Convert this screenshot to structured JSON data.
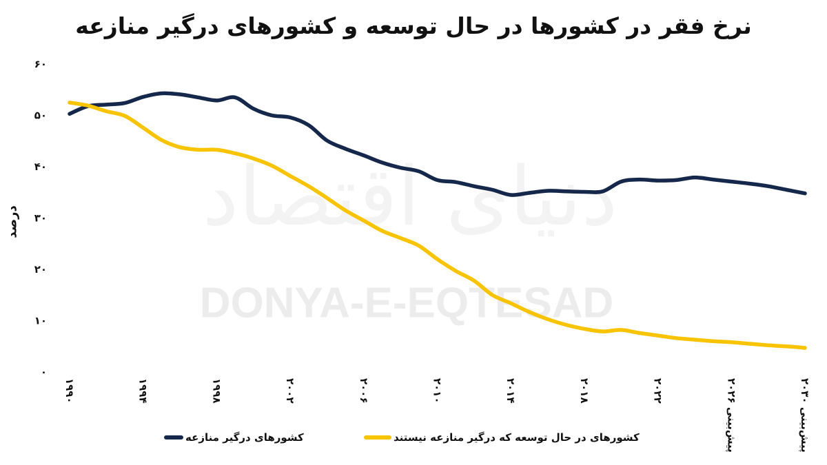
{
  "watermark": {
    "latin": "DONYA-E-EQTESAD",
    "persian": "دنیای اقتصاد"
  },
  "chart_data": {
    "type": "line",
    "title": "نرخ فقر در کشورها در حال توسعه و کشورهای درگیر منازعه",
    "xlabel": "",
    "ylabel": "درصد",
    "xlim": [
      1990,
      2030
    ],
    "ylim": [
      0,
      60
    ],
    "grid": false,
    "legend_position": "bottom",
    "yticks": [
      0,
      10,
      20,
      30,
      40,
      50,
      60
    ],
    "ytick_labels": [
      "۰",
      "۱۰",
      "۲۰",
      "۳۰",
      "۴۰",
      "۵۰",
      "۶۰"
    ],
    "xticks": [
      1990,
      1994,
      1998,
      2002,
      2006,
      2010,
      2014,
      2018,
      2022,
      2026,
      2030
    ],
    "xtick_labels": [
      "۱۹۹۰",
      "۱۹۹۴",
      "۱۹۹۸",
      "۲۰۰۲",
      "۲۰۰۶",
      "۲۰۱۰",
      "۲۰۱۴",
      "۲۰۱۸",
      "۲۰۲۲",
      "۲۰۲۶ پیش‌بینی",
      "۲۰۳۰ پیش‌بینی"
    ],
    "x": [
      1990,
      1991,
      1992,
      1993,
      1994,
      1995,
      1996,
      1997,
      1998,
      1999,
      2000,
      2001,
      2002,
      2003,
      2004,
      2005,
      2006,
      2007,
      2008,
      2009,
      2010,
      2011,
      2012,
      2013,
      2014,
      2015,
      2016,
      2017,
      2018,
      2019,
      2020,
      2021,
      2022,
      2023,
      2024,
      2025,
      2026,
      2027,
      2028,
      2029,
      2030
    ],
    "series": [
      {
        "name": "کشورهای درگیر منازعه",
        "color": "#15284b",
        "values": [
          50.3,
          51.8,
          52.1,
          52.4,
          53.6,
          54.3,
          54.1,
          53.5,
          52.9,
          53.5,
          51.3,
          50.0,
          49.6,
          48.1,
          45.1,
          43.5,
          42.2,
          40.8,
          39.8,
          39.1,
          37.4,
          37.0,
          36.2,
          35.5,
          34.5,
          34.9,
          35.3,
          35.2,
          35.1,
          35.2,
          37.1,
          37.5,
          37.3,
          37.4,
          37.9,
          37.5,
          37.1,
          36.7,
          36.2,
          35.5,
          34.8
        ]
      },
      {
        "name": "کشورهای در حال توسعه که درگیر منازعه نیستند",
        "color": "#f8c300",
        "values": [
          52.5,
          51.9,
          50.8,
          49.9,
          47.6,
          45.2,
          43.8,
          43.3,
          43.3,
          42.6,
          41.6,
          40.2,
          38.2,
          36.2,
          33.9,
          31.5,
          29.5,
          27.5,
          26.1,
          24.6,
          22.0,
          19.7,
          17.8,
          15.0,
          13.4,
          11.7,
          10.3,
          9.2,
          8.4,
          7.9,
          8.2,
          7.6,
          7.1,
          6.6,
          6.3,
          6.0,
          5.8,
          5.5,
          5.2,
          5.0,
          4.7
        ]
      }
    ]
  }
}
